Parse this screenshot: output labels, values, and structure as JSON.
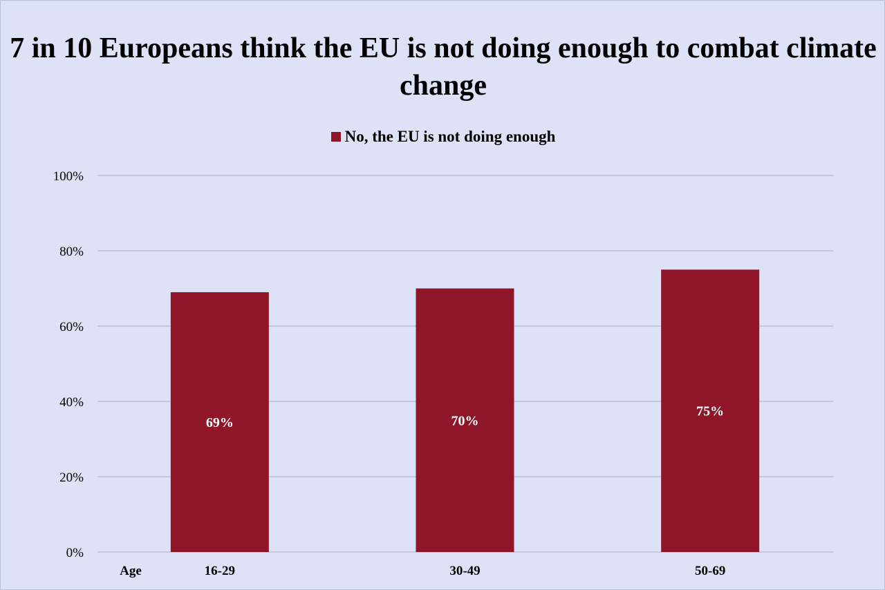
{
  "colors": {
    "background": "#dde2f6",
    "bar": "#8f1628",
    "gridline": "#a9aec0",
    "data_label": "#ffffff"
  },
  "chart_data": {
    "type": "bar",
    "title": "7 in 10 Europeans think the EU is not doing enough to combat climate change",
    "x_axis_title": "Age",
    "categories": [
      "16-29",
      "30-49",
      "50-69"
    ],
    "series": [
      {
        "name": "No, the EU is not doing enough",
        "values": [
          69,
          70,
          75
        ],
        "data_labels": [
          "69%",
          "70%",
          "75%"
        ]
      }
    ],
    "ylim": [
      0,
      100
    ],
    "y_ticks": [
      0,
      20,
      40,
      60,
      80,
      100
    ],
    "y_tick_labels": [
      "0%",
      "20%",
      "40%",
      "60%",
      "80%",
      "100%"
    ],
    "grid": true,
    "legend_position": "top-center"
  }
}
